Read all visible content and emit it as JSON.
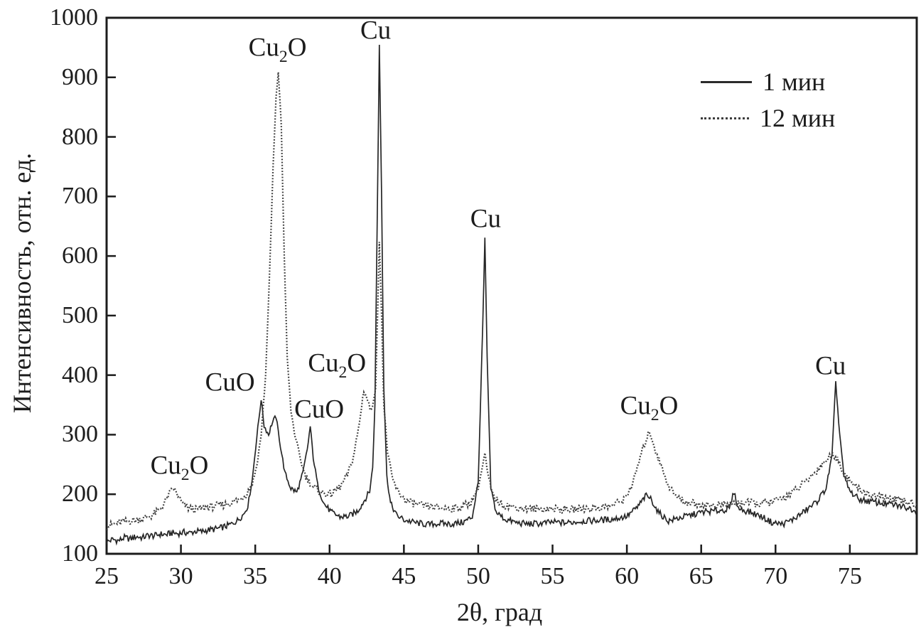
{
  "chart_data": {
    "type": "line",
    "title": "",
    "xlabel": "2θ, град",
    "ylabel": "Интенсивность, отн. ед.",
    "xlim": [
      25,
      79.5
    ],
    "ylim": [
      100,
      1000
    ],
    "x_ticks": [
      25,
      30,
      35,
      40,
      45,
      50,
      55,
      60,
      65,
      70,
      75
    ],
    "y_ticks": [
      100,
      200,
      300,
      400,
      500,
      600,
      700,
      800,
      900,
      1000
    ],
    "grid": false,
    "frame": true,
    "colors": {
      "axis": "#1c1c1c",
      "solid_line": "#262626",
      "dotted_line": "#3d3d3d"
    },
    "legend": {
      "position": "top-right",
      "entries": [
        {
          "label": "1 мин",
          "style": "solid"
        },
        {
          "label": "12 мин",
          "style": "dotted"
        }
      ]
    },
    "series": [
      {
        "name": "1 мин",
        "style": "solid",
        "color": "#262626",
        "points": [
          [
            25,
            120
          ],
          [
            25.4,
            124
          ],
          [
            25.8,
            122
          ],
          [
            26.2,
            127
          ],
          [
            26.6,
            125
          ],
          [
            27,
            129
          ],
          [
            27.4,
            127
          ],
          [
            27.8,
            131
          ],
          [
            28.2,
            130
          ],
          [
            28.6,
            133
          ],
          [
            29,
            132
          ],
          [
            29.4,
            135
          ],
          [
            29.8,
            134
          ],
          [
            30.2,
            136
          ],
          [
            30.6,
            135
          ],
          [
            31,
            138
          ],
          [
            31.4,
            137
          ],
          [
            31.8,
            140
          ],
          [
            32.2,
            141
          ],
          [
            32.6,
            143
          ],
          [
            33,
            146
          ],
          [
            33.4,
            150
          ],
          [
            33.8,
            156
          ],
          [
            34.2,
            166
          ],
          [
            34.5,
            180
          ],
          [
            34.8,
            225
          ],
          [
            35.1,
            295
          ],
          [
            35.4,
            360
          ],
          [
            35.6,
            315
          ],
          [
            35.9,
            300
          ],
          [
            36.1,
            318
          ],
          [
            36.4,
            330
          ],
          [
            36.7,
            280
          ],
          [
            37,
            235
          ],
          [
            37.4,
            210
          ],
          [
            37.8,
            203
          ],
          [
            38.2,
            235
          ],
          [
            38.5,
            275
          ],
          [
            38.7,
            314
          ],
          [
            38.9,
            262
          ],
          [
            39.2,
            215
          ],
          [
            39.6,
            185
          ],
          [
            40.1,
            170
          ],
          [
            40.7,
            162
          ],
          [
            41.3,
            163
          ],
          [
            41.9,
            172
          ],
          [
            42.3,
            188
          ],
          [
            42.7,
            205
          ],
          [
            42.9,
            245
          ],
          [
            43.05,
            350
          ],
          [
            43.2,
            650
          ],
          [
            43.35,
            955
          ],
          [
            43.5,
            700
          ],
          [
            43.65,
            380
          ],
          [
            43.85,
            230
          ],
          [
            44.1,
            185
          ],
          [
            44.5,
            165
          ],
          [
            45,
            157
          ],
          [
            45.8,
            152
          ],
          [
            46.6,
            149
          ],
          [
            47.4,
            151
          ],
          [
            48.2,
            150
          ],
          [
            49,
            153
          ],
          [
            49.6,
            162
          ],
          [
            50,
            220
          ],
          [
            50.3,
            480
          ],
          [
            50.45,
            630
          ],
          [
            50.6,
            430
          ],
          [
            50.85,
            210
          ],
          [
            51.2,
            170
          ],
          [
            51.8,
            158
          ],
          [
            52.6,
            152
          ],
          [
            53.4,
            150
          ],
          [
            54.2,
            151
          ],
          [
            55,
            153
          ],
          [
            56,
            152
          ],
          [
            57,
            155
          ],
          [
            58,
            156
          ],
          [
            59,
            158
          ],
          [
            60,
            163
          ],
          [
            60.7,
            178
          ],
          [
            61.3,
            198
          ],
          [
            61.6,
            193
          ],
          [
            62.1,
            170
          ],
          [
            62.8,
            155
          ],
          [
            63.5,
            160
          ],
          [
            64.3,
            165
          ],
          [
            65.1,
            170
          ],
          [
            66,
            172
          ],
          [
            66.9,
            175
          ],
          [
            67.2,
            204
          ],
          [
            67.5,
            176
          ],
          [
            68.3,
            170
          ],
          [
            69.1,
            162
          ],
          [
            69.8,
            152
          ],
          [
            70.5,
            150
          ],
          [
            71.2,
            158
          ],
          [
            72,
            172
          ],
          [
            72.8,
            188
          ],
          [
            73.4,
            210
          ],
          [
            73.8,
            265
          ],
          [
            74.05,
            390
          ],
          [
            74.25,
            320
          ],
          [
            74.6,
            230
          ],
          [
            75,
            205
          ],
          [
            75.6,
            192
          ],
          [
            76.3,
            188
          ],
          [
            77.1,
            185
          ],
          [
            78,
            182
          ],
          [
            78.8,
            178
          ],
          [
            79.5,
            173
          ]
        ]
      },
      {
        "name": "12 мин",
        "style": "dotted",
        "color": "#3d3d3d",
        "points": [
          [
            25,
            146
          ],
          [
            25.5,
            150
          ],
          [
            26,
            153
          ],
          [
            26.5,
            155
          ],
          [
            27,
            157
          ],
          [
            27.5,
            160
          ],
          [
            28,
            164
          ],
          [
            28.5,
            172
          ],
          [
            28.9,
            186
          ],
          [
            29.2,
            200
          ],
          [
            29.5,
            210
          ],
          [
            29.8,
            198
          ],
          [
            30.1,
            184
          ],
          [
            30.5,
            177
          ],
          [
            31,
            174
          ],
          [
            31.5,
            177
          ],
          [
            32,
            179
          ],
          [
            32.5,
            181
          ],
          [
            33,
            183
          ],
          [
            33.5,
            187
          ],
          [
            34,
            192
          ],
          [
            34.4,
            200
          ],
          [
            34.8,
            218
          ],
          [
            35.1,
            248
          ],
          [
            35.4,
            300
          ],
          [
            35.7,
            400
          ],
          [
            35.95,
            560
          ],
          [
            36.2,
            750
          ],
          [
            36.4,
            865
          ],
          [
            36.55,
            910
          ],
          [
            36.75,
            820
          ],
          [
            36.95,
            600
          ],
          [
            37.15,
            430
          ],
          [
            37.4,
            340
          ],
          [
            37.7,
            295
          ],
          [
            38,
            262
          ],
          [
            38.4,
            230
          ],
          [
            38.9,
            212
          ],
          [
            39.5,
            202
          ],
          [
            40.1,
            200
          ],
          [
            40.7,
            212
          ],
          [
            41.2,
            232
          ],
          [
            41.6,
            262
          ],
          [
            42,
            318
          ],
          [
            42.3,
            375
          ],
          [
            42.5,
            362
          ],
          [
            42.8,
            338
          ],
          [
            43.1,
            380
          ],
          [
            43.25,
            520
          ],
          [
            43.35,
            625
          ],
          [
            43.5,
            500
          ],
          [
            43.65,
            350
          ],
          [
            43.9,
            272
          ],
          [
            44.2,
            228
          ],
          [
            44.6,
            204
          ],
          [
            45.1,
            190
          ],
          [
            45.7,
            184
          ],
          [
            46.4,
            180
          ],
          [
            47.2,
            178
          ],
          [
            48,
            176
          ],
          [
            48.8,
            178
          ],
          [
            49.5,
            186
          ],
          [
            50,
            212
          ],
          [
            50.3,
            248
          ],
          [
            50.45,
            268
          ],
          [
            50.65,
            232
          ],
          [
            51,
            196
          ],
          [
            51.6,
            183
          ],
          [
            52.4,
            178
          ],
          [
            53.2,
            176
          ],
          [
            54,
            175
          ],
          [
            55,
            176
          ],
          [
            56,
            174
          ],
          [
            57,
            176
          ],
          [
            58,
            177
          ],
          [
            59,
            181
          ],
          [
            59.8,
            191
          ],
          [
            60.4,
            218
          ],
          [
            60.9,
            262
          ],
          [
            61.3,
            292
          ],
          [
            61.55,
            305
          ],
          [
            61.9,
            275
          ],
          [
            62.3,
            248
          ],
          [
            62.8,
            215
          ],
          [
            63.3,
            196
          ],
          [
            64,
            187
          ],
          [
            64.8,
            183
          ],
          [
            65.6,
            181
          ],
          [
            66.4,
            182
          ],
          [
            67.2,
            184
          ],
          [
            68,
            186
          ],
          [
            68.8,
            184
          ],
          [
            69.6,
            186
          ],
          [
            70.4,
            192
          ],
          [
            71.2,
            204
          ],
          [
            72,
            220
          ],
          [
            72.7,
            238
          ],
          [
            73.3,
            255
          ],
          [
            73.9,
            268
          ],
          [
            74.3,
            252
          ],
          [
            74.8,
            228
          ],
          [
            75.4,
            212
          ],
          [
            76.1,
            202
          ],
          [
            76.9,
            196
          ],
          [
            77.7,
            192
          ],
          [
            78.6,
            188
          ],
          [
            79.5,
            184
          ]
        ]
      }
    ],
    "annotations": [
      {
        "text": "Cu_2O",
        "x": 29.9,
        "y": 248
      },
      {
        "text": "CuO",
        "x": 33.3,
        "y": 388
      },
      {
        "text": "Cu_2O",
        "x": 36.5,
        "y": 950
      },
      {
        "text": "CuO",
        "x": 39.3,
        "y": 342
      },
      {
        "text": "Cu_2O",
        "x": 40.5,
        "y": 420
      },
      {
        "text": "Cu",
        "x": 43.1,
        "y": 978
      },
      {
        "text": "Cu",
        "x": 50.5,
        "y": 662
      },
      {
        "text": "Cu_2O",
        "x": 61.5,
        "y": 348
      },
      {
        "text": "Cu",
        "x": 73.7,
        "y": 415
      }
    ]
  }
}
